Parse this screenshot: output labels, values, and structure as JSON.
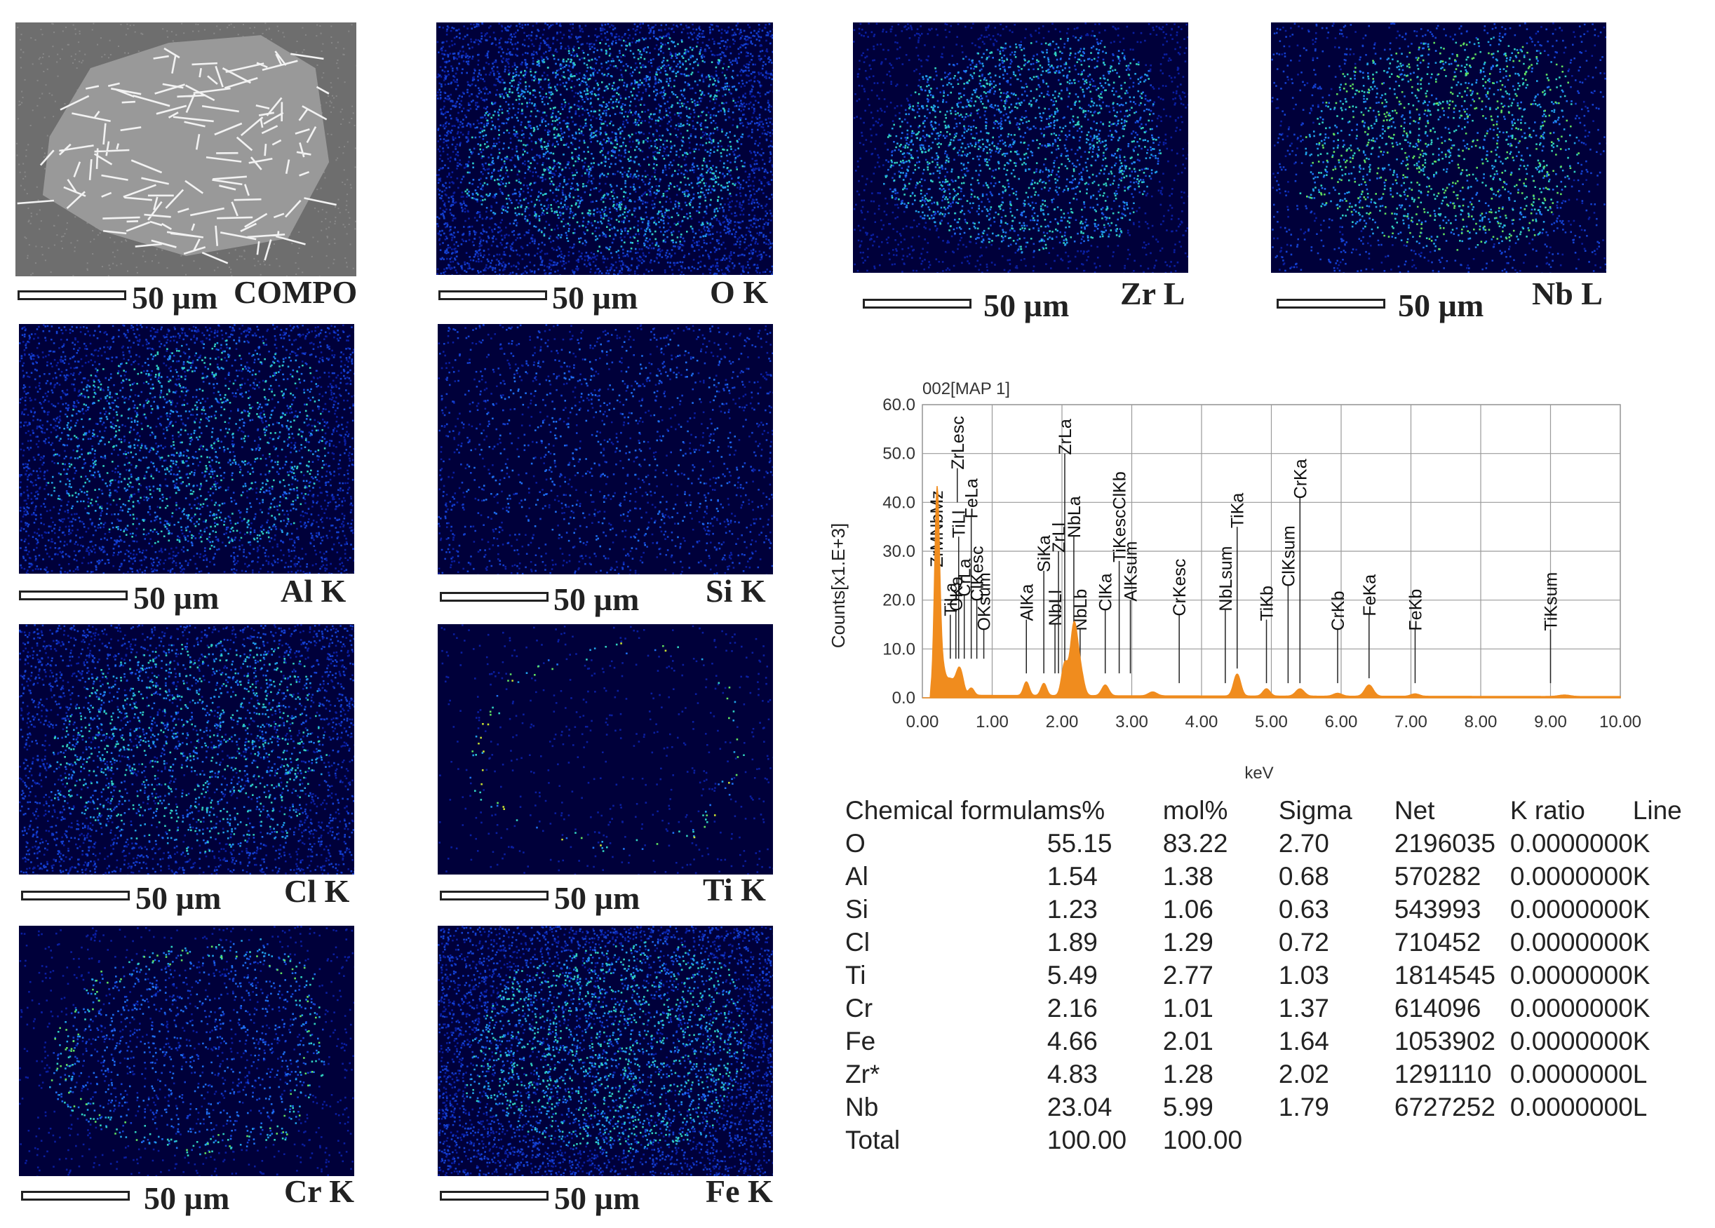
{
  "maps": [
    {
      "id": "compo",
      "element_label": "COMPO",
      "scale_label": "50 µm",
      "style": "bse"
    },
    {
      "id": "o",
      "element_label": "O K",
      "scale_label": "50 µm",
      "style": "dense"
    },
    {
      "id": "zr",
      "element_label": "Zr L",
      "scale_label": "50 µm",
      "style": "blob"
    },
    {
      "id": "nb",
      "element_label": "Nb L",
      "scale_label": "50 µm",
      "style": "bright"
    },
    {
      "id": "al",
      "element_label": "Al K",
      "scale_label": "50 µm",
      "style": "medium"
    },
    {
      "id": "si",
      "element_label": "Si K",
      "scale_label": "50 µm",
      "style": "sparse"
    },
    {
      "id": "cl",
      "element_label": "Cl K",
      "scale_label": "50 µm",
      "style": "medium"
    },
    {
      "id": "ti",
      "element_label": "Ti K",
      "scale_label": "50 µm",
      "style": "rim"
    },
    {
      "id": "cr",
      "element_label": "Cr K",
      "scale_label": "50 µm",
      "style": "rimsoft"
    },
    {
      "id": "fe",
      "element_label": "Fe K",
      "scale_label": "50 µm",
      "style": "dense"
    }
  ],
  "colors": {
    "map_background": "#00003a",
    "spectrum_fill": "#f08c1e",
    "grid": "#9a9a9a"
  },
  "chart_data": {
    "type": "area",
    "title": "002[MAP 1]",
    "xlabel": "keV",
    "ylabel": "Counts[x1.E+3]",
    "xlim": [
      0,
      10
    ],
    "ylim": [
      0,
      60
    ],
    "x_ticks": [
      "0.00",
      "1.00",
      "2.00",
      "3.00",
      "4.00",
      "5.00",
      "6.00",
      "7.00",
      "8.00",
      "9.00",
      "10.00"
    ],
    "y_ticks": [
      "0.0",
      "10.0",
      "20.0",
      "30.0",
      "40.0",
      "50.0",
      "60.0"
    ],
    "grid": true,
    "peaks": [
      {
        "x": 0.21,
        "y": 40.5,
        "w": 0.035
      },
      {
        "x": 0.28,
        "y": 6.0,
        "w": 0.05
      },
      {
        "x": 0.39,
        "y": 2.5,
        "w": 0.04
      },
      {
        "x": 0.46,
        "y": 2.2,
        "w": 0.04
      },
      {
        "x": 0.52,
        "y": 4.0,
        "w": 0.035
      },
      {
        "x": 0.57,
        "y": 2.8,
        "w": 0.035
      },
      {
        "x": 0.7,
        "y": 1.5,
        "w": 0.04
      },
      {
        "x": 1.49,
        "y": 2.8,
        "w": 0.04
      },
      {
        "x": 1.74,
        "y": 2.5,
        "w": 0.04
      },
      {
        "x": 2.04,
        "y": 6.5,
        "w": 0.045
      },
      {
        "x": 2.17,
        "y": 14.0,
        "w": 0.05
      },
      {
        "x": 2.26,
        "y": 5.0,
        "w": 0.05
      },
      {
        "x": 2.62,
        "y": 2.2,
        "w": 0.05
      },
      {
        "x": 3.3,
        "y": 0.8,
        "w": 0.06
      },
      {
        "x": 4.51,
        "y": 4.5,
        "w": 0.05
      },
      {
        "x": 4.93,
        "y": 1.5,
        "w": 0.05
      },
      {
        "x": 5.41,
        "y": 1.5,
        "w": 0.06
      },
      {
        "x": 5.95,
        "y": 0.6,
        "w": 0.06
      },
      {
        "x": 6.4,
        "y": 2.3,
        "w": 0.06
      },
      {
        "x": 7.06,
        "y": 0.5,
        "w": 0.06
      },
      {
        "x": 9.2,
        "y": 0.3,
        "w": 0.08
      }
    ],
    "annotations": [
      {
        "label": "ZrLesc",
        "x": 0.5,
        "tip": 47,
        "base": 40
      },
      {
        "label": "ZrMNbMz",
        "x": 0.2,
        "tip": 27,
        "base": 12
      },
      {
        "label": "TiLl",
        "x": 0.52,
        "tip": 33,
        "base": 8
      },
      {
        "label": "TiLa",
        "x": 0.4,
        "tip": 17,
        "base": 8
      },
      {
        "label": "OKa",
        "x": 0.48,
        "tip": 18,
        "base": 8
      },
      {
        "label": "CrLa",
        "x": 0.6,
        "tip": 21,
        "base": 8
      },
      {
        "label": "FeLa",
        "x": 0.7,
        "tip": 37,
        "base": 8
      },
      {
        "label": "ClKesc",
        "x": 0.78,
        "tip": 20,
        "base": 8
      },
      {
        "label": "OKsum",
        "x": 0.88,
        "tip": 14,
        "base": 8
      },
      {
        "label": "AlKa",
        "x": 1.49,
        "tip": 16,
        "base": 5
      },
      {
        "label": "SiKa",
        "x": 1.74,
        "tip": 26,
        "base": 5
      },
      {
        "label": "NbLl",
        "x": 1.9,
        "tip": 15,
        "base": 5
      },
      {
        "label": "ZrLl",
        "x": 1.95,
        "tip": 30,
        "base": 5
      },
      {
        "label": "ZrLa",
        "x": 2.04,
        "tip": 50,
        "base": 5
      },
      {
        "label": "NbLa",
        "x": 2.17,
        "tip": 33,
        "base": 15
      },
      {
        "label": "NbLb",
        "x": 2.26,
        "tip": 14,
        "base": 8
      },
      {
        "label": "ClKa",
        "x": 2.62,
        "tip": 18,
        "base": 5
      },
      {
        "label": "TiKescClKb",
        "x": 2.82,
        "tip": 28,
        "base": 5
      },
      {
        "label": "AlKsum",
        "x": 2.98,
        "tip": 20,
        "base": 5
      },
      {
        "label": "CrKesc",
        "x": 3.68,
        "tip": 17,
        "base": 3
      },
      {
        "label": "NbLsum",
        "x": 4.34,
        "tip": 18,
        "base": 3
      },
      {
        "label": "TiKa",
        "x": 4.51,
        "tip": 35,
        "base": 6
      },
      {
        "label": "TiKb",
        "x": 4.93,
        "tip": 16,
        "base": 3
      },
      {
        "label": "ClKsum",
        "x": 5.24,
        "tip": 23,
        "base": 3
      },
      {
        "label": "CrKa",
        "x": 5.41,
        "tip": 41,
        "base": 3
      },
      {
        "label": "CrKb",
        "x": 5.95,
        "tip": 14,
        "base": 3
      },
      {
        "label": "FeKa",
        "x": 6.4,
        "tip": 17,
        "base": 4
      },
      {
        "label": "FeKb",
        "x": 7.06,
        "tip": 14,
        "base": 3
      },
      {
        "label": "TiKsum",
        "x": 9.0,
        "tip": 14,
        "base": 3
      }
    ]
  },
  "table": {
    "headers": [
      "Chemical formula",
      "ms%",
      "mol%",
      "Sigma",
      "Net",
      "K ratio",
      "Line"
    ],
    "rows": [
      [
        "O",
        "55.15",
        "83.22",
        "2.70",
        "2196035",
        "0.0000000",
        "K"
      ],
      [
        "Al",
        "1.54",
        "1.38",
        "0.68",
        "570282",
        "0.0000000",
        "K"
      ],
      [
        "Si",
        "1.23",
        "1.06",
        "0.63",
        "543993",
        "0.0000000",
        "K"
      ],
      [
        "Cl",
        "1.89",
        "1.29",
        "0.72",
        "710452",
        "0.0000000",
        "K"
      ],
      [
        "Ti",
        "5.49",
        "2.77",
        "1.03",
        "1814545",
        "0.0000000",
        "K"
      ],
      [
        "Cr",
        "2.16",
        "1.01",
        "1.37",
        "614096",
        "0.0000000",
        "K"
      ],
      [
        "Fe",
        "4.66",
        "2.01",
        "1.64",
        "1053902",
        "0.0000000",
        "K"
      ],
      [
        "Zr*",
        "4.83",
        "1.28",
        "2.02",
        "1291110",
        "0.0000000",
        "L"
      ],
      [
        "Nb",
        "23.04",
        "5.99",
        "1.79",
        "6727252",
        "0.0000000",
        "L"
      ]
    ],
    "total": [
      "Total",
      "100.00",
      "100.00"
    ]
  }
}
